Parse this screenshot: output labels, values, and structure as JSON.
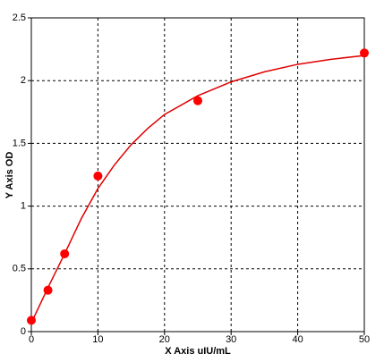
{
  "chart_data": {
    "type": "scatter",
    "xlabel": "X Axis uIU/mL",
    "ylabel": "Y Axis OD",
    "xlim": [
      0,
      50
    ],
    "xticks": [
      0,
      10,
      20,
      30,
      40,
      50
    ],
    "ylim": [
      0,
      2.5
    ],
    "yticks": [
      0,
      0.5,
      1,
      1.5,
      2,
      2.5
    ],
    "grid": true,
    "series": [
      {
        "type": "line",
        "color": "#e00000",
        "x": [
          0,
          2.5,
          5,
          7.5,
          10,
          12.5,
          15,
          17.5,
          20,
          25,
          30,
          35,
          40,
          45,
          50
        ],
        "values": [
          0.07,
          0.35,
          0.62,
          0.9,
          1.14,
          1.33,
          1.49,
          1.62,
          1.73,
          1.88,
          1.99,
          2.07,
          2.13,
          2.17,
          2.2
        ]
      },
      {
        "type": "scatter",
        "color": "#ff0000",
        "x": [
          0,
          2.5,
          5,
          10,
          25,
          50
        ],
        "values": [
          0.09,
          0.33,
          0.62,
          1.24,
          1.84,
          2.22
        ]
      }
    ]
  }
}
